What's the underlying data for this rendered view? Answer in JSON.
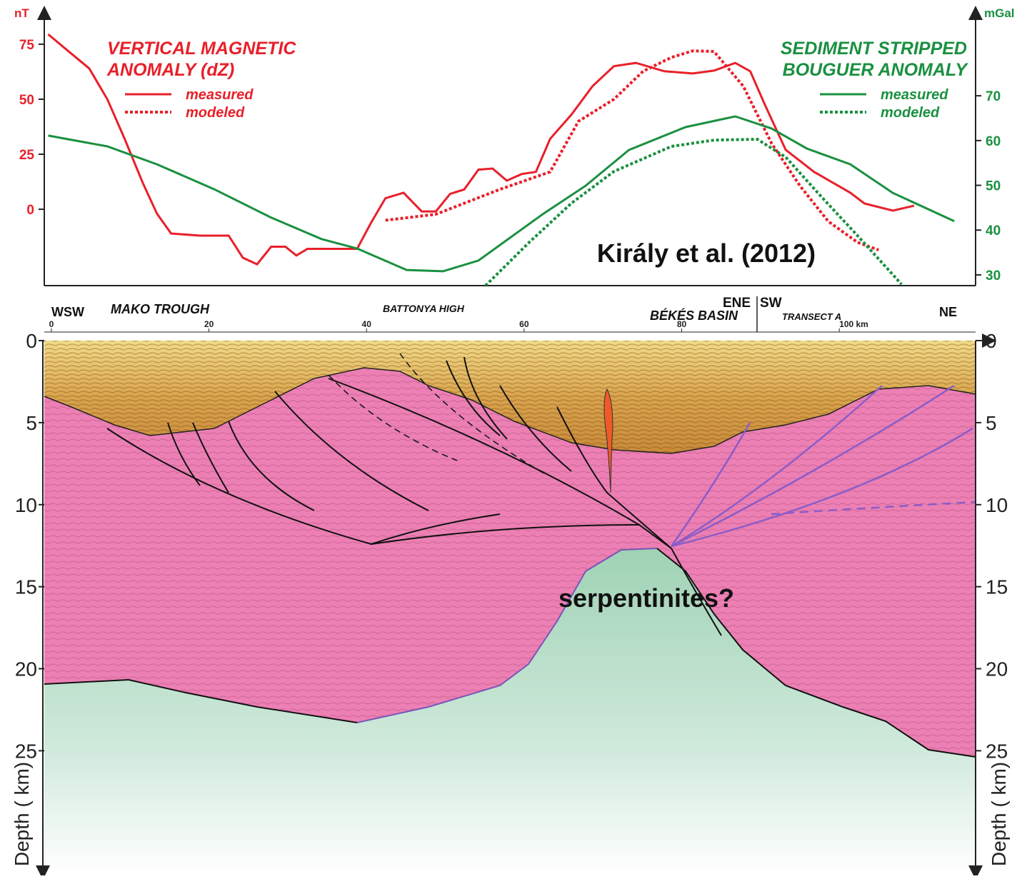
{
  "chart_data": {
    "type": "line",
    "ylabel": "nT",
    "y2label": "mGal",
    "legend_titles": {
      "y": [
        "VERTICAL MAGNETIC",
        "ANOMALY (dZ)"
      ],
      "y2": [
        "SEDIMENT STRIPPED",
        "BOUGUER ANOMALY"
      ]
    },
    "annotation": "Király et al. (2012)",
    "xlim": [
      -0.9,
      117.3
    ],
    "ylim": [
      -34.7,
      88.6
    ],
    "yticks": [
      0,
      25,
      50,
      75
    ],
    "y2lim": [
      27.6,
      88.2
    ],
    "y2ticks": [
      30,
      40,
      50,
      60,
      70
    ],
    "series": [
      {
        "name": "measured",
        "color": "#e8202a",
        "dash": "solid",
        "axis": "y",
        "x": [
          -0.4,
          2.1,
          4.8,
          7.1,
          9.3,
          11.6,
          13.4,
          15.2,
          18.9,
          22.5,
          24.3,
          26.1,
          27.9,
          29.7,
          31.1,
          32.5,
          38.8,
          40.6,
          42.4,
          44.7,
          47.0,
          48.8,
          50.6,
          52.4,
          54.2,
          56.0,
          57.8,
          59.7,
          61.5,
          63.3,
          66.0,
          68.7,
          71.4,
          74.2,
          77.8,
          81.4,
          84.1,
          86.8,
          88.7,
          90.5,
          93.2,
          96.8,
          101.4,
          103.2,
          106.8,
          109.5
        ],
        "values": [
          79.5,
          72,
          64,
          50,
          32,
          12,
          -2,
          -11,
          -12,
          -12,
          -22,
          -25,
          -17,
          -17,
          -21,
          -18,
          -18,
          -6,
          5,
          7.5,
          -1,
          -1,
          7,
          9,
          18,
          18.5,
          13,
          16,
          17,
          32,
          43,
          56,
          65,
          66.5,
          62.7,
          61.7,
          63,
          66.5,
          62.7,
          48,
          27,
          17,
          7.5,
          2.6,
          -0.6,
          1.6
        ]
      },
      {
        "name": "modeled",
        "color": "#e8202a",
        "dash": "dotted",
        "axis": "y",
        "x": [
          42.4,
          48.8,
          56.9,
          63.3,
          66.9,
          71.4,
          75.1,
          78.7,
          81.4,
          84.1,
          87.8,
          91.4,
          95.0,
          98.6,
          102.3,
          105.0
        ],
        "values": [
          -5,
          -2.3,
          9,
          17,
          40,
          50,
          62.7,
          69,
          72,
          71.7,
          56,
          30,
          10.7,
          -5.5,
          -15,
          -18.5
        ]
      },
      {
        "name": "measured",
        "color": "#1a9040",
        "dash": "solid",
        "axis": "y2",
        "x": [
          -0.4,
          7.1,
          13.4,
          20.7,
          27.9,
          34.3,
          38.8,
          45.1,
          49.7,
          54.2,
          62.4,
          67.8,
          73.3,
          80.5,
          86.8,
          91.4,
          95.9,
          101.4,
          106.8,
          114.6
        ],
        "values": [
          61.1,
          58.7,
          54.7,
          49.1,
          42.8,
          38,
          35.9,
          31.1,
          30.8,
          33.2,
          43.6,
          49.9,
          57.9,
          63,
          65.4,
          62.7,
          58.2,
          54.7,
          48.3,
          42
        ]
      },
      {
        "name": "modeled",
        "color": "#1a9040",
        "dash": "dotted",
        "axis": "y2",
        "x": [
          55.1,
          60.6,
          66.0,
          71.4,
          78.7,
          84.1,
          89.6,
          93.2,
          97.7,
          102.3,
          107.9
        ],
        "values": [
          27.6,
          37.2,
          46,
          53.1,
          58.7,
          60.1,
          60.3,
          56.3,
          47.5,
          38.8,
          27.9
        ]
      }
    ]
  },
  "section": {
    "labels": {
      "wsw": "WSW",
      "mako_trough": "MAKO TROUGH",
      "battonya_high": "BATTONYA HIGH",
      "ene": "ENE",
      "sw": "SW",
      "bekes_basin": "BÉKÉS BASIN",
      "transect_a": "TRANSECT A",
      "ne": "NE"
    },
    "km_lim": [
      -0.9,
      117.3
    ],
    "km_ticks": [
      0,
      20,
      40,
      60,
      80,
      {
        "value": 100,
        "label": "100 km"
      }
    ],
    "depth_lim": [
      0,
      32.6
    ],
    "depth_ticks": [
      0,
      5,
      10,
      15,
      20,
      25
    ],
    "depth_label": "Depth ( km)",
    "annotation": "serpentinites?"
  }
}
